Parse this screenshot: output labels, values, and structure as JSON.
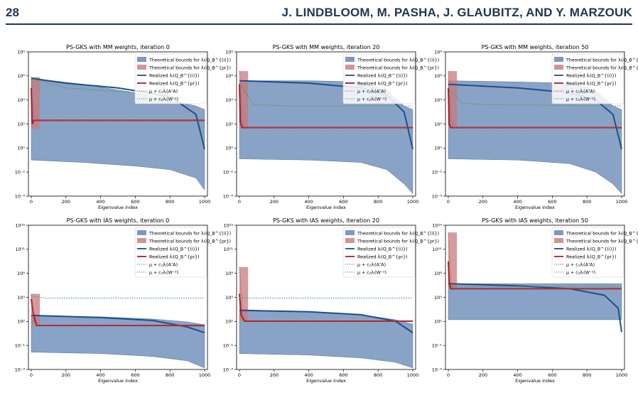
{
  "header": {
    "page_number": "28",
    "running_head": "J. LINDBLOOM, M. PASHA, J. GLAUBITZ, AND Y. MARZOUK"
  },
  "legend": {
    "items": [
      {
        "label": "Theoretical bounds for λᵢ(Q_B^{(i)})",
        "kind": "patch",
        "color": "#5b7fb0"
      },
      {
        "label": "Theoretical bounds for λᵢ(Q_B^{pr})",
        "kind": "patch",
        "color": "#c67b7c"
      },
      {
        "label": "Realized λᵢ(Q_B^{(i)})",
        "kind": "line",
        "color": "#1f4e8c"
      },
      {
        "label": "Realized λᵢ(Q_B^{pr})",
        "kind": "line",
        "color": "#a31f2a"
      },
      {
        "label": "μ + c₁λᵢ(AᵀA)",
        "kind": "dotted",
        "color": "#d64545"
      },
      {
        "label": "μ + c₂λᵢ(W⁻²)",
        "kind": "dotted",
        "color": "#3f9a52"
      }
    ]
  },
  "chart_data": [
    {
      "type": "area",
      "title": "PS-GKS with MM weights, iteration 0",
      "xlabel": "Eigenvalue index",
      "ylabel": "",
      "xlim": [
        0,
        1000
      ],
      "ylim_log10": [
        -4,
        8
      ],
      "yscale": "log",
      "xticks": [
        0,
        200,
        400,
        600,
        800,
        1000
      ],
      "yticks": [
        "10⁻⁴",
        "10⁻²",
        "10⁰",
        "10²",
        "10⁴",
        "10⁶",
        "10⁸"
      ],
      "series": [
        {
          "name": "Theoretical bounds (i)",
          "upper_log10": [
            [
              0,
              5.8
            ],
            [
              300,
              5.3
            ],
            [
              600,
              4.6
            ],
            [
              800,
              4.0
            ],
            [
              950,
              3.5
            ],
            [
              1000,
              3.2
            ]
          ],
          "lower_log10": [
            [
              0,
              -1.0
            ],
            [
              300,
              -1.2
            ],
            [
              600,
              -1.5
            ],
            [
              800,
              -1.8
            ],
            [
              950,
              -2.5
            ],
            [
              1000,
              -3.5
            ]
          ]
        },
        {
          "name": "Theoretical bounds (pr)",
          "x_range": [
            0,
            50
          ],
          "log10_range": [
            1.6,
            5.9
          ]
        },
        {
          "name": "Realized (i)",
          "log10": [
            [
              0,
              5.8
            ],
            [
              200,
              5.4
            ],
            [
              500,
              5.0
            ],
            [
              800,
              4.3
            ],
            [
              950,
              2.8
            ],
            [
              1000,
              -0.1
            ]
          ]
        },
        {
          "name": "Realized (pr)",
          "log10": [
            [
              0,
              5.0
            ],
            [
              5,
              2.0
            ],
            [
              15,
              2.3
            ],
            [
              1000,
              2.3
            ]
          ]
        },
        {
          "name": "mu + c1 (AtA)",
          "log10": [
            [
              0,
              5.9
            ],
            [
              10,
              3.0
            ],
            [
              20,
              2.3
            ],
            [
              1000,
              2.3
            ]
          ]
        },
        {
          "name": "mu + c2 (W^-2)",
          "log10": [
            [
              0,
              5.8
            ],
            [
              200,
              5.0
            ],
            [
              600,
              4.6
            ],
            [
              900,
              4.1
            ],
            [
              1000,
              3.8
            ]
          ]
        }
      ]
    },
    {
      "type": "area",
      "title": "PS-GKS with MM weights, iteration 20",
      "xlabel": "Eigenvalue index",
      "ylabel": "",
      "xlim": [
        0,
        1000
      ],
      "ylim_log10": [
        -4,
        8
      ],
      "yscale": "log",
      "xticks": [
        0,
        200,
        400,
        600,
        800,
        1000
      ],
      "yticks": [
        "10⁻⁴",
        "10⁻²",
        "10⁰",
        "10²",
        "10⁴",
        "10⁶",
        "10⁸"
      ],
      "series": [
        {
          "name": "Theoretical bounds (i)",
          "upper_log10": [
            [
              0,
              5.6
            ],
            [
              400,
              5.6
            ],
            [
              700,
              5.5
            ],
            [
              850,
              4.8
            ],
            [
              950,
              3.5
            ],
            [
              1000,
              3.2
            ]
          ],
          "lower_log10": [
            [
              0,
              -0.9
            ],
            [
              400,
              -1.0
            ],
            [
              700,
              -1.2
            ],
            [
              850,
              -1.8
            ],
            [
              950,
              -3.0
            ],
            [
              1000,
              -3.8
            ]
          ]
        },
        {
          "name": "Theoretical bounds (pr)",
          "x_range": [
            0,
            50
          ],
          "log10_range": [
            1.7,
            6.4
          ]
        },
        {
          "name": "Realized (i)",
          "log10": [
            [
              0,
              5.6
            ],
            [
              400,
              5.4
            ],
            [
              700,
              5.0
            ],
            [
              850,
              4.4
            ],
            [
              950,
              3.0
            ],
            [
              1000,
              -0.1
            ]
          ]
        },
        {
          "name": "Realized (pr)",
          "log10": [
            [
              0,
              5.3
            ],
            [
              5,
              2.2
            ],
            [
              15,
              1.7
            ],
            [
              1000,
              1.7
            ]
          ]
        },
        {
          "name": "mu + c1 (AtA)",
          "log10": [
            [
              0,
              6.4
            ],
            [
              15,
              2.3
            ],
            [
              30,
              1.7
            ],
            [
              1000,
              1.7
            ]
          ]
        },
        {
          "name": "mu + c2 (W^-2)",
          "log10": [
            [
              0,
              5.4
            ],
            [
              80,
              3.6
            ],
            [
              300,
              3.5
            ],
            [
              1000,
              3.5
            ]
          ]
        }
      ]
    },
    {
      "type": "area",
      "title": "PS-GKS with MM weights, iteration 50",
      "xlabel": "Eigenvalue index",
      "ylabel": "",
      "xlim": [
        0,
        1000
      ],
      "ylim_log10": [
        -4,
        8
      ],
      "yscale": "log",
      "xticks": [
        0,
        200,
        400,
        600,
        800,
        1000
      ],
      "yticks": [
        "10⁻⁴",
        "10⁻²",
        "10⁰",
        "10²",
        "10⁴",
        "10⁶",
        "10⁸"
      ],
      "series": [
        {
          "name": "Theoretical bounds (i)",
          "upper_log10": [
            [
              0,
              5.6
            ],
            [
              400,
              5.5
            ],
            [
              700,
              5.4
            ],
            [
              850,
              4.8
            ],
            [
              950,
              3.5
            ],
            [
              1000,
              3.2
            ]
          ],
          "lower_log10": [
            [
              0,
              -0.9
            ],
            [
              400,
              -1.0
            ],
            [
              700,
              -1.3
            ],
            [
              850,
              -2.0
            ],
            [
              950,
              -3.0
            ],
            [
              1000,
              -3.8
            ]
          ]
        },
        {
          "name": "Theoretical bounds (pr)",
          "x_range": [
            0,
            50
          ],
          "log10_range": [
            1.7,
            6.4
          ]
        },
        {
          "name": "Realized (i)",
          "log10": [
            [
              0,
              5.3
            ],
            [
              400,
              5.0
            ],
            [
              700,
              4.6
            ],
            [
              850,
              4.0
            ],
            [
              950,
              2.8
            ],
            [
              1000,
              -0.1
            ]
          ]
        },
        {
          "name": "Realized (pr)",
          "log10": [
            [
              0,
              5.0
            ],
            [
              5,
              2.0
            ],
            [
              15,
              1.7
            ],
            [
              1000,
              1.7
            ]
          ]
        },
        {
          "name": "mu + c1 (AtA)",
          "log10": [
            [
              0,
              6.4
            ],
            [
              15,
              2.3
            ],
            [
              30,
              1.7
            ],
            [
              1000,
              1.7
            ]
          ]
        },
        {
          "name": "mu + c2 (W^-2)",
          "log10": [
            [
              0,
              5.0
            ],
            [
              80,
              3.7
            ],
            [
              300,
              3.6
            ],
            [
              1000,
              3.5
            ]
          ]
        }
      ]
    },
    {
      "type": "area",
      "title": "PS-GKS with IAS weights, iteration 0",
      "xlabel": "Eigenvalue index",
      "ylabel": "",
      "xlim": [
        0,
        1000
      ],
      "ylim_log10": [
        -4,
        16
      ],
      "yscale": "log",
      "xticks": [
        0,
        200,
        400,
        600,
        800,
        1000
      ],
      "yticks": [
        "10⁻⁴",
        "10⁻¹",
        "10²",
        "10⁵",
        "10⁸",
        "10¹¹",
        "10¹⁴"
      ],
      "series": [
        {
          "name": "Theoretical bounds (i)",
          "upper_log10": [
            [
              0,
              3.5
            ],
            [
              400,
              3.3
            ],
            [
              700,
              3.0
            ],
            [
              900,
              2.6
            ],
            [
              1000,
              2.2
            ]
          ],
          "lower_log10": [
            [
              0,
              -1.6
            ],
            [
              400,
              -1.8
            ],
            [
              700,
              -2.2
            ],
            [
              900,
              -2.8
            ],
            [
              1000,
              -3.8
            ]
          ]
        },
        {
          "name": "Theoretical bounds (pr)",
          "x_range": [
            0,
            50
          ],
          "log10_range": [
            2.2,
            6.5
          ]
        },
        {
          "name": "Realized (i)",
          "log10": [
            [
              0,
              3.5
            ],
            [
              400,
              3.2
            ],
            [
              700,
              2.8
            ],
            [
              900,
              1.9
            ],
            [
              1000,
              1.1
            ]
          ]
        },
        {
          "name": "Realized (pr)",
          "log10": [
            [
              0,
              5.8
            ],
            [
              10,
              4.0
            ],
            [
              30,
              2.1
            ],
            [
              1000,
              2.1
            ]
          ]
        },
        {
          "name": "mu + c1 (AtA)",
          "log10": [
            [
              0,
              6.4
            ],
            [
              15,
              2.8
            ],
            [
              30,
              2.1
            ],
            [
              1000,
              2.1
            ]
          ]
        },
        {
          "name": "mu + c2 (W^-2)",
          "log10": [
            [
              0,
              6.2
            ],
            [
              80,
              5.9
            ],
            [
              1000,
              5.9
            ]
          ]
        }
      ]
    },
    {
      "type": "area",
      "title": "PS-GKS with IAS weights, iteration 20",
      "xlabel": "Eigenvalue index",
      "ylabel": "",
      "xlim": [
        0,
        1000
      ],
      "ylim_log10": [
        -4,
        16
      ],
      "yscale": "log",
      "xticks": [
        0,
        200,
        400,
        600,
        800,
        1000
      ],
      "yticks": [
        "10⁻⁴",
        "10⁻¹",
        "10²",
        "10⁵",
        "10⁸",
        "10¹¹",
        "10¹⁴"
      ],
      "series": [
        {
          "name": "Theoretical bounds (i)",
          "upper_log10": [
            [
              0,
              4.3
            ],
            [
              400,
              4.0
            ],
            [
              700,
              3.6
            ],
            [
              900,
              2.9
            ],
            [
              1000,
              2.3
            ]
          ],
          "lower_log10": [
            [
              0,
              -1.8
            ],
            [
              400,
              -2.0
            ],
            [
              700,
              -2.4
            ],
            [
              900,
              -3.0
            ],
            [
              1000,
              -3.8
            ]
          ]
        },
        {
          "name": "Theoretical bounds (pr)",
          "x_range": [
            0,
            50
          ],
          "log10_range": [
            2.7,
            10.2
          ]
        },
        {
          "name": "Realized (i)",
          "log10": [
            [
              0,
              4.2
            ],
            [
              400,
              4.0
            ],
            [
              700,
              3.6
            ],
            [
              900,
              2.7
            ],
            [
              1000,
              1.1
            ]
          ]
        },
        {
          "name": "Realized (pr)",
          "log10": [
            [
              0,
              6.5
            ],
            [
              10,
              3.5
            ],
            [
              30,
              2.7
            ],
            [
              1000,
              2.7
            ]
          ]
        },
        {
          "name": "mu + c1 (AtA)",
          "log10": [
            [
              0,
              10.2
            ],
            [
              20,
              3.3
            ],
            [
              40,
              2.7
            ],
            [
              1000,
              2.7
            ]
          ]
        },
        {
          "name": "mu + c2 (W^-2)",
          "log10": [
            [
              0,
              6.0
            ],
            [
              80,
              5.9
            ],
            [
              1000,
              5.9
            ]
          ]
        }
      ]
    },
    {
      "type": "area",
      "title": "PS-GKS with IAS weights, iteration 50",
      "xlabel": "Eigenvalue index",
      "ylabel": "",
      "xlim": [
        0,
        1000
      ],
      "ylim_log10": [
        -4,
        16
      ],
      "yscale": "log",
      "xticks": [
        0,
        200,
        400,
        600,
        800,
        1000
      ],
      "yticks": [
        "10⁻⁴",
        "10⁻¹",
        "10²",
        "10⁵",
        "10⁸",
        "10¹¹",
        "10¹⁴"
      ],
      "series": [
        {
          "name": "Theoretical bounds (i)",
          "upper_log10": [
            [
              0,
              7.9
            ],
            [
              400,
              7.9
            ],
            [
              700,
              7.9
            ],
            [
              900,
              7.9
            ],
            [
              1000,
              7.9
            ]
          ],
          "lower_log10": [
            [
              0,
              2.9
            ],
            [
              400,
              2.9
            ],
            [
              700,
              2.9
            ],
            [
              900,
              2.9
            ],
            [
              1000,
              2.9
            ]
          ]
        },
        {
          "name": "Theoretical bounds (pr)",
          "x_range": [
            0,
            50
          ],
          "log10_range": [
            7.2,
            15.0
          ]
        },
        {
          "name": "Realized (i)",
          "log10": [
            [
              0,
              7.9
            ],
            [
              400,
              7.6
            ],
            [
              700,
              7.2
            ],
            [
              900,
              6.3
            ],
            [
              980,
              4.5
            ],
            [
              1000,
              1.2
            ]
          ]
        },
        {
          "name": "Realized (pr)",
          "log10": [
            [
              0,
              11.0
            ],
            [
              5,
              8.0
            ],
            [
              15,
              7.2
            ],
            [
              1000,
              7.2
            ]
          ]
        },
        {
          "name": "mu + c1 (AtA)",
          "log10": [
            [
              0,
              15.0
            ],
            [
              15,
              8.0
            ],
            [
              30,
              7.2
            ],
            [
              1000,
              7.2
            ]
          ]
        },
        {
          "name": "mu + c2 (W^-2)",
          "log10": [
            [
              0,
              7.5
            ],
            [
              1000,
              7.5
            ]
          ]
        }
      ]
    }
  ]
}
